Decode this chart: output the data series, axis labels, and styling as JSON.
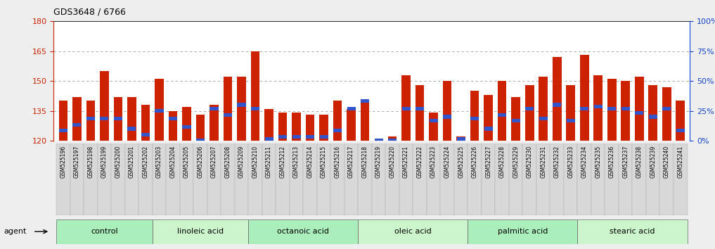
{
  "title": "GDS3648 / 6766",
  "samples": [
    "GSM525196",
    "GSM525197",
    "GSM525198",
    "GSM525199",
    "GSM525200",
    "GSM525201",
    "GSM525202",
    "GSM525203",
    "GSM525204",
    "GSM525205",
    "GSM525206",
    "GSM525207",
    "GSM525208",
    "GSM525209",
    "GSM525210",
    "GSM525211",
    "GSM525212",
    "GSM525213",
    "GSM525214",
    "GSM525215",
    "GSM525216",
    "GSM525217",
    "GSM525218",
    "GSM525219",
    "GSM525220",
    "GSM525221",
    "GSM525222",
    "GSM525223",
    "GSM525224",
    "GSM525225",
    "GSM525226",
    "GSM525227",
    "GSM525228",
    "GSM525229",
    "GSM525230",
    "GSM525231",
    "GSM525232",
    "GSM525233",
    "GSM525234",
    "GSM525235",
    "GSM525236",
    "GSM525237",
    "GSM525238",
    "GSM525239",
    "GSM525240",
    "GSM525241"
  ],
  "red_heights": [
    140,
    142,
    140,
    155,
    142,
    142,
    138,
    151,
    135,
    137,
    133,
    138,
    152,
    152,
    165,
    136,
    134,
    134,
    133,
    133,
    140,
    136,
    140,
    120,
    122,
    153,
    148,
    134,
    150,
    122,
    145,
    143,
    150,
    142,
    148,
    152,
    162,
    148,
    163,
    153,
    151,
    150,
    152,
    148,
    147,
    140
  ],
  "blue_heights": [
    125,
    128,
    131,
    131,
    131,
    126,
    123,
    135,
    131,
    127,
    120,
    136,
    133,
    138,
    136,
    121,
    122,
    122,
    122,
    122,
    125,
    136,
    140,
    120,
    120,
    136,
    136,
    130,
    132,
    121,
    131,
    126,
    133,
    130,
    136,
    131,
    138,
    130,
    136,
    137,
    136,
    136,
    134,
    132,
    136,
    125
  ],
  "groups": [
    {
      "label": "control",
      "start": 0,
      "end": 7
    },
    {
      "label": "linoleic acid",
      "start": 7,
      "end": 14
    },
    {
      "label": "octanoic acid",
      "start": 14,
      "end": 22
    },
    {
      "label": "oleic acid",
      "start": 22,
      "end": 30
    },
    {
      "label": "palmitic acid",
      "start": 30,
      "end": 38
    },
    {
      "label": "stearic acid",
      "start": 38,
      "end": 46
    }
  ],
  "ymin": 120,
  "ymax": 180,
  "yticks_left": [
    120,
    135,
    150,
    165,
    180
  ],
  "yticks_right": [
    0,
    25,
    50,
    75,
    100
  ],
  "bar_color": "#cc2200",
  "blue_color": "#3355cc",
  "bg_color": "#eeeeee",
  "plot_bg": "#ffffff",
  "tick_label_color_left": "#cc2200",
  "tick_label_color_right": "#1144cc",
  "group_colors": [
    "#aaeebb",
    "#ccf5cc"
  ]
}
